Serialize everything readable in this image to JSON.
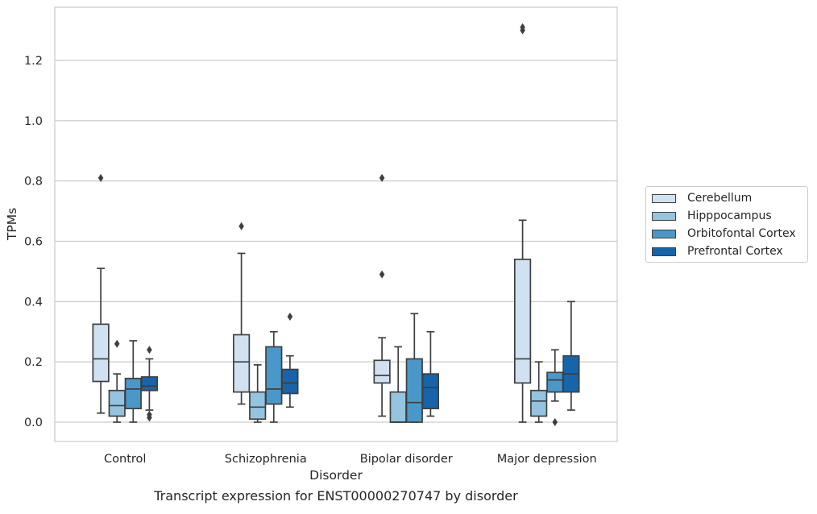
{
  "chart_data": {
    "type": "box",
    "title": "",
    "caption": "Transcript expression for ENST00000270747 by disorder",
    "xlabel": "Disorder",
    "ylabel": "TPMs",
    "ylim": [
      -0.065,
      1.38
    ],
    "yticks": [
      "0.0",
      "0.2",
      "0.4",
      "0.6",
      "0.8",
      "1.0",
      "1.2"
    ],
    "grid": "horizontal",
    "legend_position": "right",
    "categories": [
      "Control",
      "Schizophrenia",
      "Bipolar disorder",
      "Major depression"
    ],
    "series": [
      {
        "name": "Cerebellum",
        "color": "#d0e1f2",
        "boxes": [
          {
            "whislo": 0.03,
            "q1": 0.135,
            "med": 0.21,
            "q3": 0.325,
            "whishi": 0.51,
            "fliers": [
              0.81
            ]
          },
          {
            "whislo": 0.06,
            "q1": 0.1,
            "med": 0.2,
            "q3": 0.29,
            "whishi": 0.56,
            "fliers": [
              0.65
            ]
          },
          {
            "whislo": 0.02,
            "q1": 0.13,
            "med": 0.155,
            "q3": 0.205,
            "whishi": 0.28,
            "fliers": [
              0.49,
              0.81
            ]
          },
          {
            "whislo": 0.0,
            "q1": 0.13,
            "med": 0.21,
            "q3": 0.54,
            "whishi": 0.67,
            "fliers": [
              1.3,
              1.31
            ]
          }
        ]
      },
      {
        "name": "Hipppocampus",
        "color": "#94c4df",
        "boxes": [
          {
            "whislo": 0.0,
            "q1": 0.02,
            "med": 0.055,
            "q3": 0.105,
            "whishi": 0.16,
            "fliers": [
              0.26
            ]
          },
          {
            "whislo": 0.0,
            "q1": 0.01,
            "med": 0.05,
            "q3": 0.1,
            "whishi": 0.19,
            "fliers": []
          },
          {
            "whislo": 0.0,
            "q1": 0.0,
            "med": 0.0,
            "q3": 0.1,
            "whishi": 0.25,
            "fliers": []
          },
          {
            "whislo": 0.0,
            "q1": 0.02,
            "med": 0.07,
            "q3": 0.105,
            "whishi": 0.2,
            "fliers": []
          }
        ]
      },
      {
        "name": "Orbitofontal Cortex",
        "color": "#4a98c9",
        "boxes": [
          {
            "whislo": 0.0,
            "q1": 0.045,
            "med": 0.11,
            "q3": 0.145,
            "whishi": 0.27,
            "fliers": []
          },
          {
            "whislo": 0.0,
            "q1": 0.06,
            "med": 0.11,
            "q3": 0.25,
            "whishi": 0.3,
            "fliers": []
          },
          {
            "whislo": 0.0,
            "q1": 0.0,
            "med": 0.065,
            "q3": 0.21,
            "whishi": 0.36,
            "fliers": []
          },
          {
            "whislo": 0.07,
            "q1": 0.1,
            "med": 0.14,
            "q3": 0.165,
            "whishi": 0.24,
            "fliers": [
              0.0
            ]
          }
        ]
      },
      {
        "name": "Prefrontal Cortex",
        "color": "#1764ab",
        "boxes": [
          {
            "whislo": 0.04,
            "q1": 0.105,
            "med": 0.12,
            "q3": 0.15,
            "whishi": 0.21,
            "fliers": [
              0.015,
              0.025,
              0.24
            ]
          },
          {
            "whislo": 0.05,
            "q1": 0.095,
            "med": 0.13,
            "q3": 0.175,
            "whishi": 0.22,
            "fliers": [
              0.35
            ]
          },
          {
            "whislo": 0.02,
            "q1": 0.045,
            "med": 0.115,
            "q3": 0.16,
            "whishi": 0.3,
            "fliers": []
          },
          {
            "whislo": 0.04,
            "q1": 0.1,
            "med": 0.16,
            "q3": 0.22,
            "whishi": 0.4,
            "fliers": []
          }
        ]
      }
    ]
  }
}
